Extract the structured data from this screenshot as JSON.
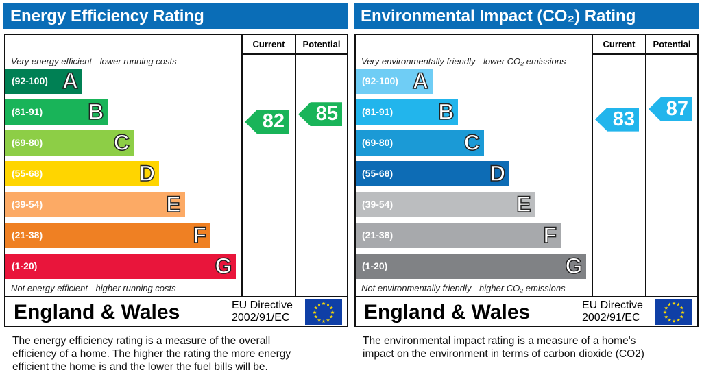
{
  "panels": [
    {
      "title": "Energy Efficiency Rating",
      "col_current": "Current",
      "col_potential": "Potential",
      "top_note": "Very energy efficient - lower running costs",
      "bottom_note": "Not energy efficient - higher running costs",
      "region": "England & Wales",
      "directive_line1": "EU Directive",
      "directive_line2": "2002/91/EC",
      "description": [
        "The energy efficiency rating is a measure of the overall",
        "efficiency of a home.  The higher the rating the more energy",
        "efficient the home is and the lower the fuel bills will be."
      ],
      "bands": [
        {
          "range": "(92-100)",
          "letter": "A",
          "color": "#008054",
          "min": 92
        },
        {
          "range": "(81-91)",
          "letter": "B",
          "color": "#19b459",
          "min": 81
        },
        {
          "range": "(69-80)",
          "letter": "C",
          "color": "#8dce46",
          "min": 69
        },
        {
          "range": "(55-68)",
          "letter": "D",
          "color": "#ffd500",
          "min": 55
        },
        {
          "range": "(39-54)",
          "letter": "E",
          "color": "#fcaa65",
          "min": 39
        },
        {
          "range": "(21-38)",
          "letter": "F",
          "color": "#ef8023",
          "min": 21
        },
        {
          "range": "(1-20)",
          "letter": "G",
          "color": "#e9153b",
          "min": 1
        }
      ],
      "current": {
        "value": "82",
        "color": "#19b459"
      },
      "potential": {
        "value": "85",
        "color": "#19b459"
      }
    },
    {
      "title": "Environmental Impact (CO₂) Rating",
      "col_current": "Current",
      "col_potential": "Potential",
      "top_note": "Very environmentally friendly - lower CO₂ emissions",
      "bottom_note": "Not environmentally friendly - higher CO₂ emissions",
      "region": "England & Wales",
      "directive_line1": "EU Directive",
      "directive_line2": "2002/91/EC",
      "description": [
        "The environmental impact rating is a measure of a home's",
        "impact on the environment in terms of carbon dioxide (CO2)"
      ],
      "bands": [
        {
          "range": "(92-100)",
          "letter": "A",
          "color": "#6fcdf5",
          "min": 92
        },
        {
          "range": "(81-91)",
          "letter": "B",
          "color": "#22b5ec",
          "min": 81
        },
        {
          "range": "(69-80)",
          "letter": "C",
          "color": "#1b9ad6",
          "min": 69
        },
        {
          "range": "(55-68)",
          "letter": "D",
          "color": "#0d6cb5",
          "min": 55
        },
        {
          "range": "(39-54)",
          "letter": "E",
          "color": "#bbbdbf",
          "min": 39
        },
        {
          "range": "(21-38)",
          "letter": "F",
          "color": "#a7a9ac",
          "min": 21
        },
        {
          "range": "(1-20)",
          "letter": "G",
          "color": "#808285",
          "min": 1
        }
      ],
      "current": {
        "value": "83",
        "color": "#22b5ec"
      },
      "potential": {
        "value": "87",
        "color": "#22b5ec"
      }
    }
  ]
}
